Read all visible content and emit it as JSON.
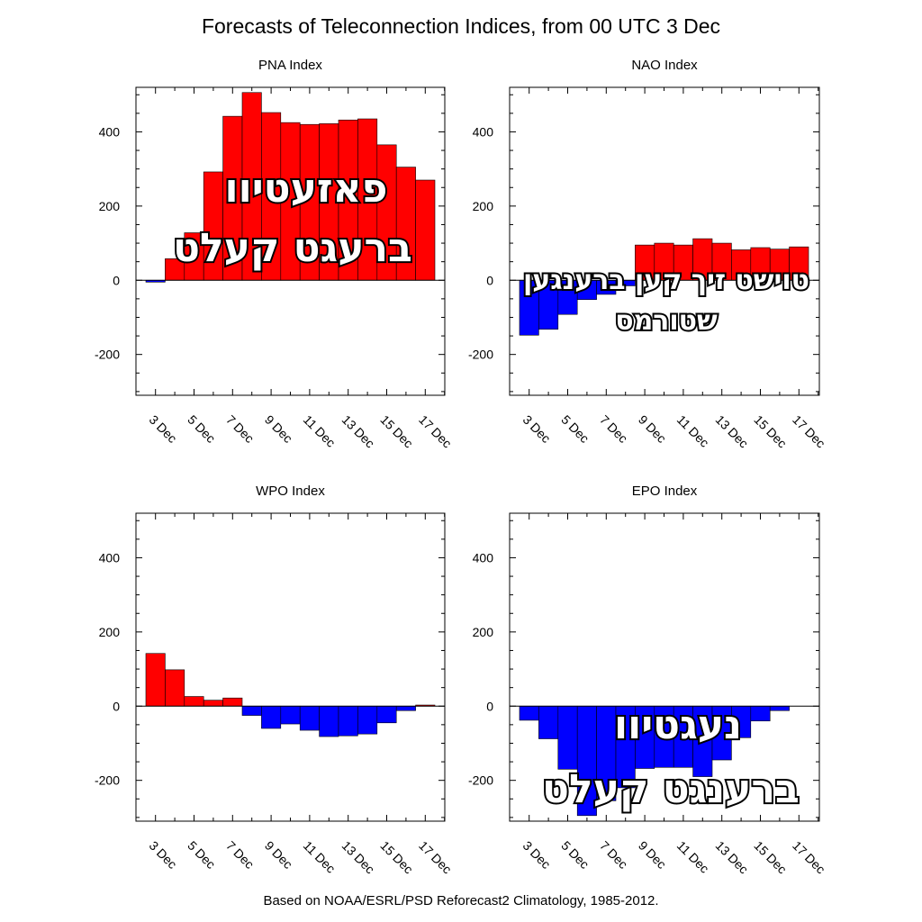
{
  "title": "Forecasts of Teleconnection Indices, from 00 UTC 3 Dec",
  "footer": "Based on NOAA/ESRL/PSD Reforecast2 Climatology, 1985-2012.",
  "colors": {
    "positive": "#ff0000",
    "negative": "#0000ff",
    "outline": "#000000"
  },
  "chart_data": [
    {
      "type": "bar",
      "title": "PNA Index",
      "ylim": [
        -310,
        520
      ],
      "yticks": [
        -200,
        0,
        200,
        400
      ],
      "x_tick_labels": [
        "3 Dec",
        "5 Dec",
        "7 Dec",
        "9 Dec",
        "11 Dec",
        "13 Dec",
        "15 Dec",
        "17 Dec"
      ],
      "values": [
        -5,
        58,
        128,
        292,
        442,
        506,
        452,
        425,
        420,
        422,
        432,
        435,
        365,
        305,
        270
      ],
      "overlay_text": [
        "פאזעטיוו",
        "ברעגט קעלט"
      ]
    },
    {
      "type": "bar",
      "title": "NAO Index",
      "ylim": [
        -310,
        520
      ],
      "yticks": [
        -200,
        0,
        200,
        400
      ],
      "x_tick_labels": [
        "3 Dec",
        "5 Dec",
        "7 Dec",
        "9 Dec",
        "11 Dec",
        "13 Dec",
        "15 Dec",
        "17 Dec"
      ],
      "values": [
        -148,
        -132,
        -92,
        -52,
        -38,
        -15,
        95,
        100,
        95,
        112,
        100,
        82,
        88,
        84,
        90
      ],
      "overlay_text": [
        "טוישט זיך קען ברענגען",
        "שטורמס"
      ]
    },
    {
      "type": "bar",
      "title": "WPO Index",
      "ylim": [
        -310,
        520
      ],
      "yticks": [
        -200,
        0,
        200,
        400
      ],
      "x_tick_labels": [
        "3 Dec",
        "5 Dec",
        "7 Dec",
        "9 Dec",
        "11 Dec",
        "13 Dec",
        "15 Dec",
        "17 Dec"
      ],
      "values": [
        142,
        98,
        26,
        16,
        22,
        -25,
        -60,
        -48,
        -65,
        -82,
        -80,
        -75,
        -45,
        -12,
        3
      ],
      "overlay_text": []
    },
    {
      "type": "bar",
      "title": "EPO Index",
      "ylim": [
        -310,
        520
      ],
      "yticks": [
        -200,
        0,
        200,
        400
      ],
      "x_tick_labels": [
        "3 Dec",
        "5 Dec",
        "7 Dec",
        "9 Dec",
        "11 Dec",
        "13 Dec",
        "15 Dec",
        "17 Dec"
      ],
      "values": [
        -38,
        -88,
        -170,
        -295,
        -255,
        -220,
        -168,
        -165,
        -165,
        -190,
        -145,
        -85,
        -40,
        -12
      ],
      "overlay_text": [
        "נעגטיוו",
        "ברענגט קעלט"
      ]
    }
  ]
}
